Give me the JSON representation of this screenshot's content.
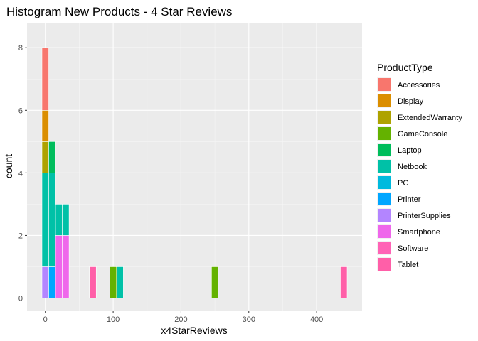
{
  "chart_data": {
    "type": "bar",
    "title": "Histogram New Products - 4 Star Reviews",
    "xlabel": "x4StarReviews",
    "ylabel": "count",
    "xlim": [
      -27,
      467
    ],
    "ylim": [
      -0.42,
      8.8
    ],
    "x_ticks": [
      0,
      100,
      200,
      300,
      400
    ],
    "y_ticks": [
      0,
      2,
      4,
      6,
      8
    ],
    "bin_width": 10,
    "grid": true,
    "legend_title": "ProductType",
    "legend_position": "right",
    "series": [
      {
        "name": "Accessories",
        "color": "#F8766D"
      },
      {
        "name": "Display",
        "color": "#DB8E00"
      },
      {
        "name": "ExtendedWarranty",
        "color": "#AEA200"
      },
      {
        "name": "GameConsole",
        "color": "#64B200"
      },
      {
        "name": "Laptop",
        "color": "#00BD5C"
      },
      {
        "name": "Netbook",
        "color": "#00C1A7"
      },
      {
        "name": "PC",
        "color": "#00BADE"
      },
      {
        "name": "Printer",
        "color": "#00A6FF"
      },
      {
        "name": "PrinterSupplies",
        "color": "#B385FF"
      },
      {
        "name": "Smartphone",
        "color": "#EF67EB"
      },
      {
        "name": "Software",
        "color": "#FF63B6"
      },
      {
        "name": "Tablet",
        "color": "#FF5FA8"
      }
    ],
    "stacks": [
      {
        "bin_center": 0,
        "segments": [
          {
            "series": "PrinterSupplies",
            "count": 1
          },
          {
            "series": "Netbook",
            "count": 3
          },
          {
            "series": "ExtendedWarranty",
            "count": 1
          },
          {
            "series": "Display",
            "count": 1
          },
          {
            "series": "Accessories",
            "count": 2
          }
        ]
      },
      {
        "bin_center": 10,
        "segments": [
          {
            "series": "Printer",
            "count": 1
          },
          {
            "series": "Netbook",
            "count": 3
          },
          {
            "series": "Laptop",
            "count": 1
          }
        ]
      },
      {
        "bin_center": 20,
        "segments": [
          {
            "series": "Smartphone",
            "count": 2
          },
          {
            "series": "Netbook",
            "count": 1
          }
        ]
      },
      {
        "bin_center": 30,
        "segments": [
          {
            "series": "Smartphone",
            "count": 2
          },
          {
            "series": "Netbook",
            "count": 1
          }
        ]
      },
      {
        "bin_center": 70,
        "segments": [
          {
            "series": "Tablet",
            "count": 1
          }
        ]
      },
      {
        "bin_center": 100,
        "segments": [
          {
            "series": "GameConsole",
            "count": 1
          }
        ]
      },
      {
        "bin_center": 110,
        "segments": [
          {
            "series": "Netbook",
            "count": 1
          }
        ]
      },
      {
        "bin_center": 250,
        "segments": [
          {
            "series": "GameConsole",
            "count": 1
          }
        ]
      },
      {
        "bin_center": 440,
        "segments": [
          {
            "series": "Tablet",
            "count": 1
          }
        ]
      }
    ]
  }
}
